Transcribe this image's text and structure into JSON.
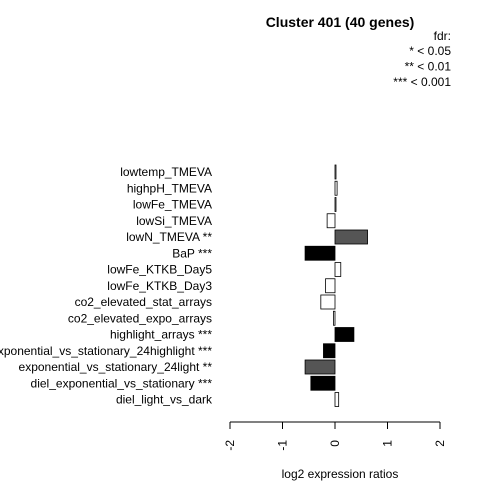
{
  "chart_data": {
    "type": "bar",
    "orientation": "horizontal",
    "title": "Cluster 401 (40 genes)",
    "xlabel": "log2 expression ratios",
    "ylabel": "",
    "xlim": [
      -2,
      2
    ],
    "x_ticks": [
      "-2",
      "-1",
      "0",
      "1",
      "2"
    ],
    "legend": {
      "title": "fdr:",
      "entries": [
        "* < 0.05",
        "** < 0.01",
        "*** < 0.001"
      ],
      "placement": "top-right"
    },
    "categories": [
      "lowtemp_TMEVA",
      "highpH_TMEVA",
      "lowFe_TMEVA",
      "lowSi_TMEVA",
      "lowN_TMEVA **",
      "BaP ***",
      "lowFe_KTKB_Day5",
      "lowFe_KTKB_Day3",
      "co2_elevated_stat_arrays",
      "co2_elevated_expo_arrays",
      "highlight_arrays ***",
      "exponential_vs_stationary_24highlight ***",
      "exponential_vs_stationary_24light **",
      "diel_exponential_vs_stationary ***",
      "diel_light_vs_dark"
    ],
    "values": [
      0.01,
      0.04,
      0.01,
      -0.15,
      0.62,
      -0.57,
      0.11,
      -0.18,
      -0.27,
      -0.03,
      0.36,
      -0.22,
      -0.57,
      -0.46,
      0.07
    ],
    "bar_colors": [
      "#ffffff",
      "#ffffff",
      "#ffffff",
      "#ffffff",
      "#555555",
      "#000000",
      "#ffffff",
      "#ffffff",
      "#ffffff",
      "#ffffff",
      "#000000",
      "#000000",
      "#555555",
      "#000000",
      "#ffffff"
    ]
  }
}
